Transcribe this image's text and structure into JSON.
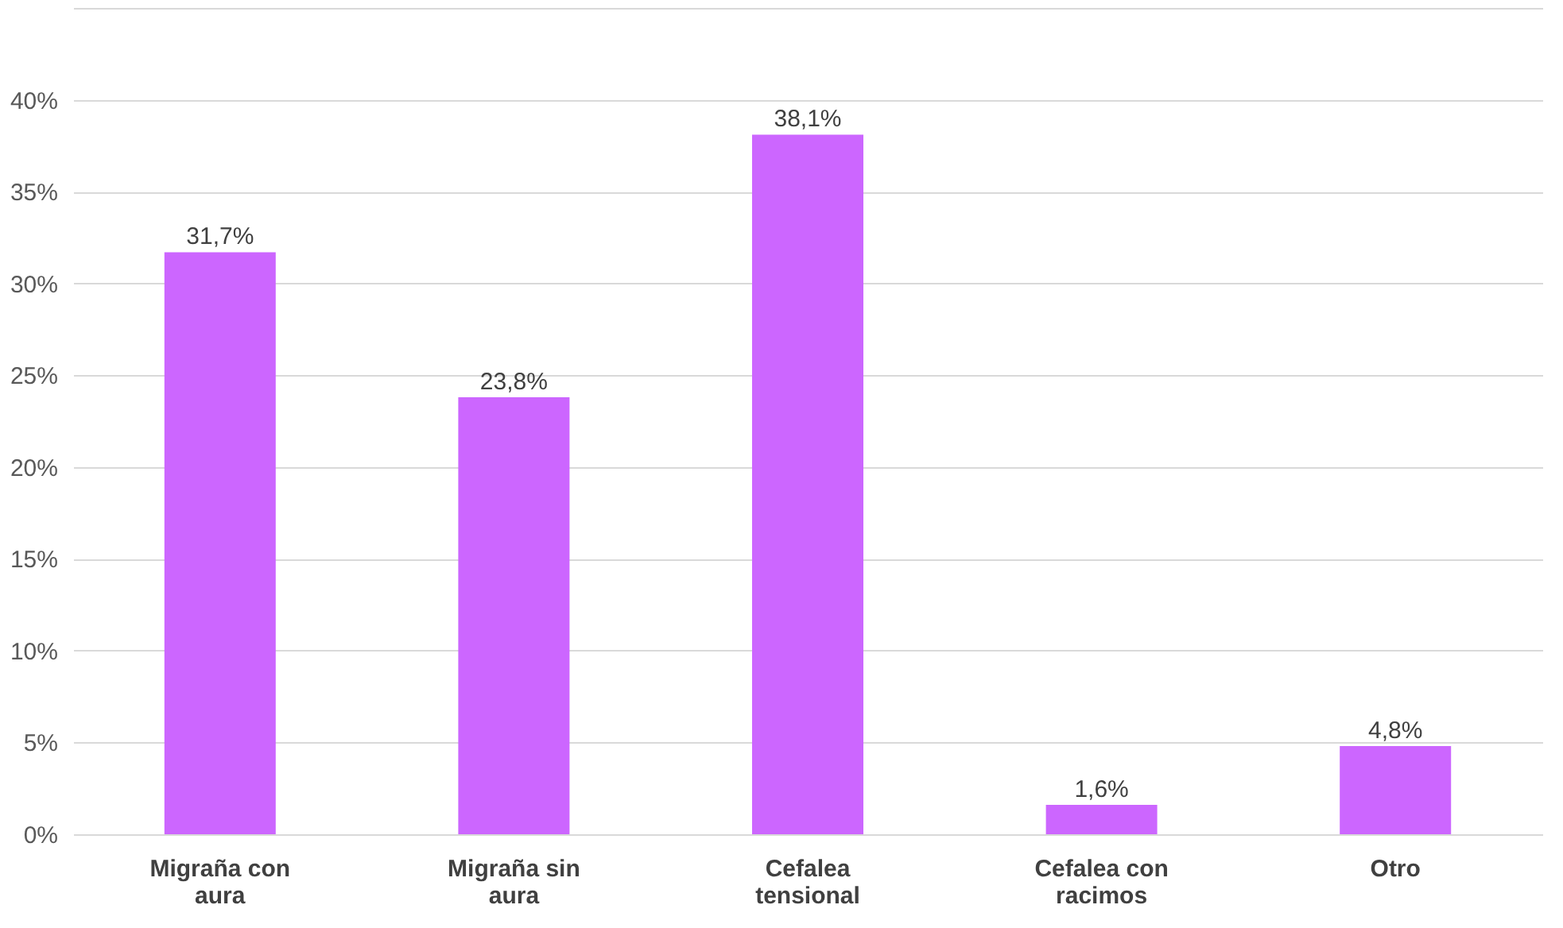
{
  "chart_data": {
    "type": "bar",
    "categories": [
      "Migraña con aura",
      "Migraña sin aura",
      "Cefalea tensional",
      "Cefalea con racimos",
      "Otro"
    ],
    "values": [
      31.7,
      23.8,
      38.1,
      1.6,
      4.8
    ],
    "value_labels": [
      "31,7%",
      "23,8%",
      "38,1%",
      "1,6%",
      "4,8%"
    ],
    "color": "#cc66ff",
    "ylim": [
      0,
      45
    ],
    "yticks": [
      {
        "value": 0,
        "label": "0%"
      },
      {
        "value": 5,
        "label": "5%"
      },
      {
        "value": 10,
        "label": "10%"
      },
      {
        "value": 15,
        "label": "15%"
      },
      {
        "value": 20,
        "label": "20%"
      },
      {
        "value": 25,
        "label": "25%"
      },
      {
        "value": 30,
        "label": "30%"
      },
      {
        "value": 35,
        "label": "35%"
      },
      {
        "value": 40,
        "label": "40%"
      },
      {
        "value": 45,
        "label": null
      }
    ],
    "grid": "y"
  }
}
